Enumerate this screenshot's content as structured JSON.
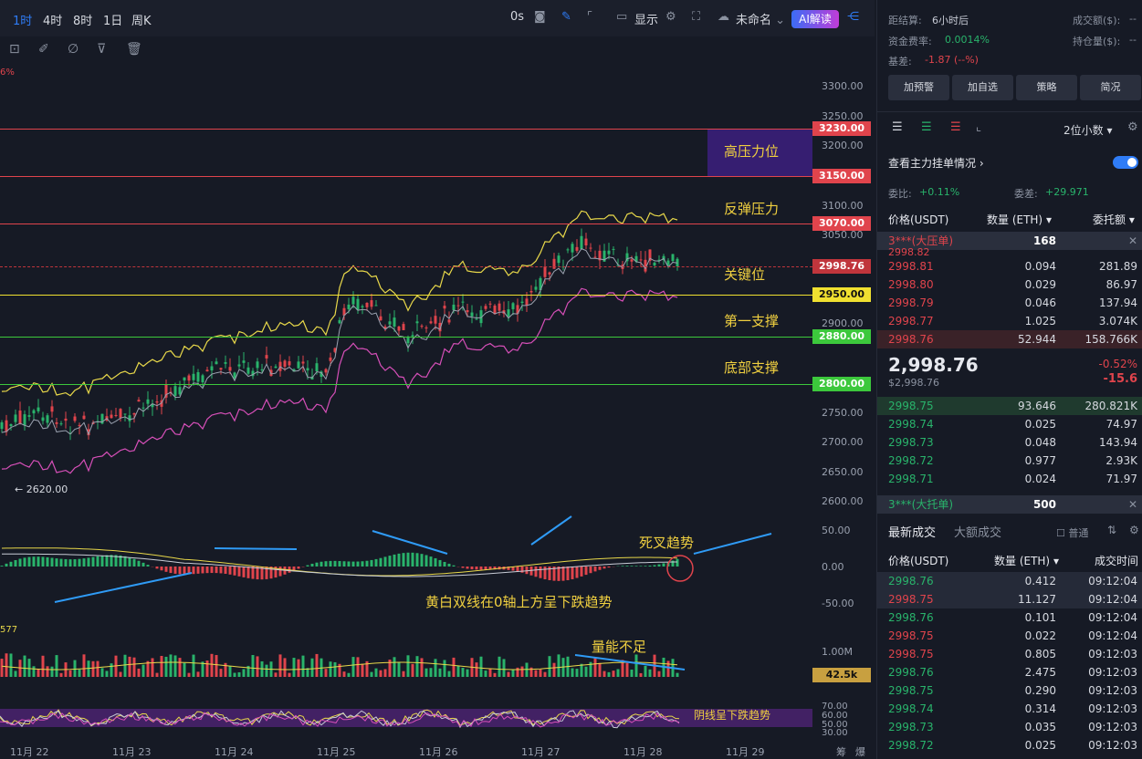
{
  "toolbar": {
    "timeframes": [
      "1时",
      "4时",
      "8时",
      "1日",
      "周K"
    ],
    "countdown": "0s",
    "display_label": "显示",
    "unnamed_label": "未命名",
    "ai_label": "AI解读"
  },
  "chart": {
    "price_ticks": [
      "3300.00",
      "3250.00",
      "3200.00",
      "3100.00",
      "3050.00",
      "2900.00",
      "2750.00",
      "2700.00",
      "2650.00",
      "2600.00"
    ],
    "levels": [
      {
        "price": "3230.00",
        "color": "#e0444c",
        "text_color": "#ffffff"
      },
      {
        "price": "3150.00",
        "color": "#e0444c",
        "text_color": "#ffffff"
      },
      {
        "price": "3070.00",
        "color": "#e0444c",
        "text_color": "#ffffff"
      },
      {
        "price": "2998.76",
        "color": "#c0353c",
        "text_color": "#ffffff"
      },
      {
        "price": "2950.00",
        "color": "#f0e030",
        "text_color": "#111111"
      },
      {
        "price": "2880.00",
        "color": "#3cc83c",
        "text_color": "#ffffff"
      },
      {
        "price": "2800.00",
        "color": "#3cc83c",
        "text_color": "#ffffff"
      }
    ],
    "annotations": {
      "high_pressure": "高压力位",
      "rebound_pressure": "反弹压力",
      "key_level": "关键位",
      "first_support": "第一支撑",
      "bottom_support": "底部支撑",
      "death_cross": "死叉趋势",
      "macd_note": "黄白双线在0轴上方呈下跌趋势",
      "volume_note": "量能不足",
      "rsi_note": "阴线呈下跌趋势"
    },
    "low_label": "← 2620.00",
    "macd_ticks": [
      "50.00",
      "0.00",
      "-50.00"
    ],
    "macd_left_value": "577",
    "pct_left": "6%",
    "volume_tick": "1.00M",
    "volume_tag": "42.5k",
    "rsi_ticks": [
      "70.00",
      "60.00",
      "50.00",
      "30.00"
    ],
    "x_labels": [
      "11月 22",
      "11月 23",
      "11月 24",
      "11月 25",
      "11月 26",
      "11月 27",
      "11月 28",
      "11月 29"
    ],
    "corner_labels": [
      "筹",
      "爆"
    ]
  },
  "panel": {
    "settle_label": "距结算:",
    "settle_value": "6小时后",
    "volume_label": "成交额($):",
    "volume_value": "--",
    "funding_label": "资金费率:",
    "funding_value": "0.0014%",
    "oi_label": "持仓量($):",
    "oi_value": "--",
    "basis_label": "基差:",
    "basis_value": "-1.87 (--%)",
    "buttons": [
      "加预警",
      "加自选",
      "策略",
      "简况"
    ],
    "decimals": "2位小数",
    "main_orders": "查看主力挂单情况",
    "ratio_label": "委比:",
    "ratio_value": "+0.11%",
    "diff_label": "委差:",
    "diff_value": "+29.971",
    "col_price": "价格(USDT)",
    "col_qty": "数量 (ETH)",
    "col_total": "委托额",
    "big_ask_label": "3***(大压单)",
    "big_ask_qty": "168",
    "partial_ask": "2998.82",
    "asks": [
      {
        "p": "2998.81",
        "q": "0.094",
        "t": "281.89"
      },
      {
        "p": "2998.80",
        "q": "0.029",
        "t": "86.97"
      },
      {
        "p": "2998.79",
        "q": "0.046",
        "t": "137.94"
      },
      {
        "p": "2998.77",
        "q": "1.025",
        "t": "3.074K"
      },
      {
        "p": "2998.76",
        "q": "52.944",
        "t": "158.766K"
      }
    ],
    "last_price": "2,998.76",
    "last_usd": "$2,998.76",
    "change_pct": "-0.52%",
    "change_abs": "-15.6",
    "bids": [
      {
        "p": "2998.75",
        "q": "93.646",
        "t": "280.821K"
      },
      {
        "p": "2998.74",
        "q": "0.025",
        "t": "74.97"
      },
      {
        "p": "2998.73",
        "q": "0.048",
        "t": "143.94"
      },
      {
        "p": "2998.72",
        "q": "0.977",
        "t": "2.93K"
      },
      {
        "p": "2998.71",
        "q": "0.024",
        "t": "71.97"
      }
    ],
    "big_bid_label": "3***(大托单)",
    "big_bid_qty": "500",
    "trades_tab": "最新成交",
    "big_trades_tab": "大额成交",
    "normal_label": "普通",
    "col_time": "成交时间",
    "trades": [
      {
        "p": "2998.76",
        "q": "0.412",
        "t": "09:12:04",
        "side": "buy"
      },
      {
        "p": "2998.75",
        "q": "11.127",
        "t": "09:12:04",
        "side": "sell"
      },
      {
        "p": "2998.76",
        "q": "0.101",
        "t": "09:12:04",
        "side": "buy"
      },
      {
        "p": "2998.75",
        "q": "0.022",
        "t": "09:12:04",
        "side": "sell"
      },
      {
        "p": "2998.75",
        "q": "0.805",
        "t": "09:12:03",
        "side": "sell"
      },
      {
        "p": "2998.76",
        "q": "2.475",
        "t": "09:12:03",
        "side": "buy"
      },
      {
        "p": "2998.75",
        "q": "0.290",
        "t": "09:12:03",
        "side": "buy"
      },
      {
        "p": "2998.74",
        "q": "0.314",
        "t": "09:12:03",
        "side": "buy"
      },
      {
        "p": "2998.73",
        "q": "0.035",
        "t": "09:12:03",
        "side": "buy"
      },
      {
        "p": "2998.72",
        "q": "0.025",
        "t": "09:12:03",
        "side": "buy"
      }
    ]
  }
}
